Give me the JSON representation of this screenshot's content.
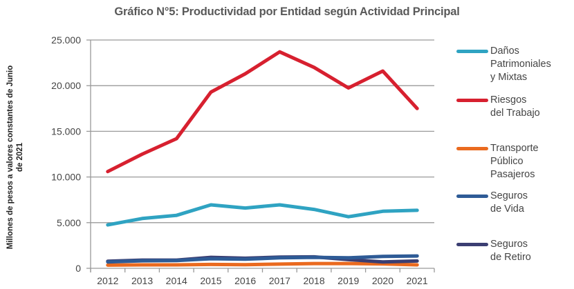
{
  "chart_data": {
    "type": "line",
    "title": "Gráfico N°5: Productividad por Entidad según Actividad Principal",
    "xlabel": "",
    "ylabel": "Millones de pesos a valores constantes de Junio de 2021",
    "ylabel_lines": [
      "Millones de pesos a valores constantes de Junio",
      "de 2021"
    ],
    "categories": [
      "2012",
      "2013",
      "2014",
      "2015",
      "2016",
      "2017",
      "2018",
      "2019",
      "2020",
      "2021"
    ],
    "ylim": [
      0,
      25000
    ],
    "yticks": [
      0,
      5000,
      10000,
      15000,
      20000,
      25000
    ],
    "ytick_labels": [
      "0",
      "5.000",
      "10.000",
      "15.000",
      "20.000",
      "25.000"
    ],
    "grid": true,
    "legend_position": "right",
    "series": [
      {
        "name": "Daños\nPatrimoniales\ny Mixtas",
        "color": "#2fa3c2",
        "values": [
          4750,
          5450,
          5800,
          6950,
          6600,
          6950,
          6450,
          5650,
          6250,
          6350
        ]
      },
      {
        "name": "Riesgos\ndel Trabajo",
        "color": "#d7202f",
        "values": [
          10600,
          12500,
          14200,
          19300,
          21300,
          23700,
          22000,
          19750,
          21600,
          17500
        ]
      },
      {
        "name": "Transporte\nPúblico\nPasajeros",
        "color": "#ea6a1f",
        "values": [
          350,
          380,
          380,
          420,
          400,
          460,
          520,
          520,
          480,
          380
        ]
      },
      {
        "name": "Seguros\nde Vida",
        "color": "#2e5b96",
        "values": [
          700,
          820,
          850,
          1050,
          1000,
          1150,
          1200,
          1150,
          1300,
          1350
        ]
      },
      {
        "name": "Seguros\nde Retiro",
        "color": "#3b3e72",
        "values": [
          780,
          900,
          900,
          1200,
          1100,
          1220,
          1250,
          950,
          700,
          800
        ]
      }
    ]
  }
}
